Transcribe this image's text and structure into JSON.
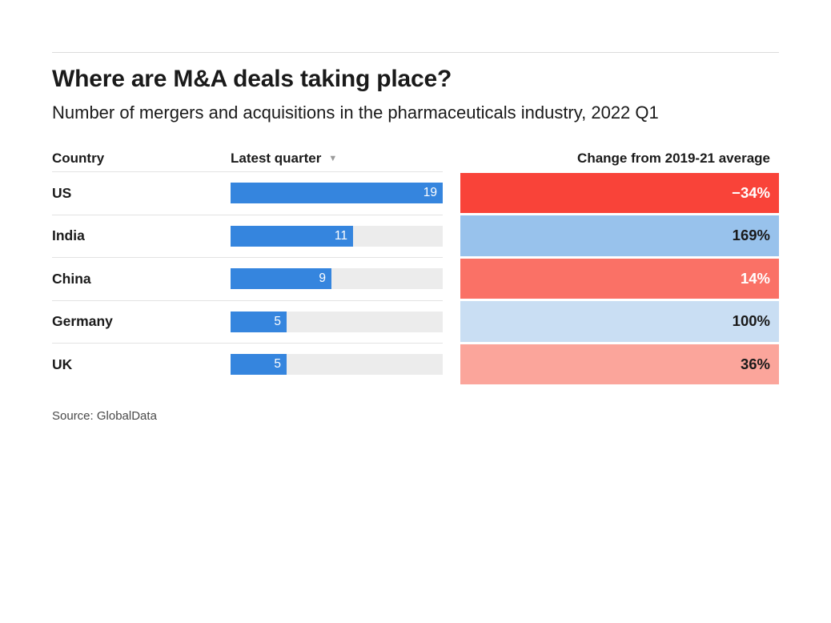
{
  "header": {
    "title": "Where are M&A deals taking place?",
    "subtitle": "Number of mergers and acquisitions in the pharmaceuticals industry, 2022 Q1"
  },
  "table": {
    "columns": {
      "country": "Country",
      "latest_quarter": "Latest quarter",
      "change": "Change from 2019-21 average"
    },
    "sort_icon": "▼",
    "bar_max": 19,
    "bar_color": "#3585de",
    "track_color": "#ececec",
    "rows": [
      {
        "country": "US",
        "latest_quarter": 19,
        "change": "−34%",
        "cell_bg": "#f94339",
        "cell_text_color": "#ffffff"
      },
      {
        "country": "India",
        "latest_quarter": 11,
        "change": "169%",
        "cell_bg": "#98c2ec",
        "cell_text_color": "#1a1a1a"
      },
      {
        "country": "China",
        "latest_quarter": 9,
        "change": "14%",
        "cell_bg": "#fa7166",
        "cell_text_color": "#ffffff"
      },
      {
        "country": "Germany",
        "latest_quarter": 5,
        "change": "100%",
        "cell_bg": "#c9def3",
        "cell_text_color": "#1a1a1a"
      },
      {
        "country": "UK",
        "latest_quarter": 5,
        "change": "36%",
        "cell_bg": "#fba59b",
        "cell_text_color": "#1a1a1a"
      }
    ]
  },
  "footer": {
    "source": "Source: GlobalData"
  },
  "chart_data": {
    "type": "table",
    "title": "Where are M&A deals taking place?",
    "subtitle": "Number of mergers and acquisitions in the pharmaceuticals industry, 2022 Q1",
    "columns": [
      "Country",
      "Latest quarter",
      "Change from 2019-21 average"
    ],
    "categories": [
      "US",
      "India",
      "China",
      "Germany",
      "UK"
    ],
    "series": [
      {
        "name": "Latest quarter",
        "type": "bar",
        "values": [
          19,
          11,
          9,
          5,
          5
        ],
        "axis_max": 19
      },
      {
        "name": "Change from 2019-21 average (%)",
        "type": "heatmap",
        "values": [
          -34,
          169,
          14,
          100,
          36
        ]
      }
    ],
    "sorted_by": "Latest quarter, descending",
    "source": "Source: GlobalData"
  }
}
